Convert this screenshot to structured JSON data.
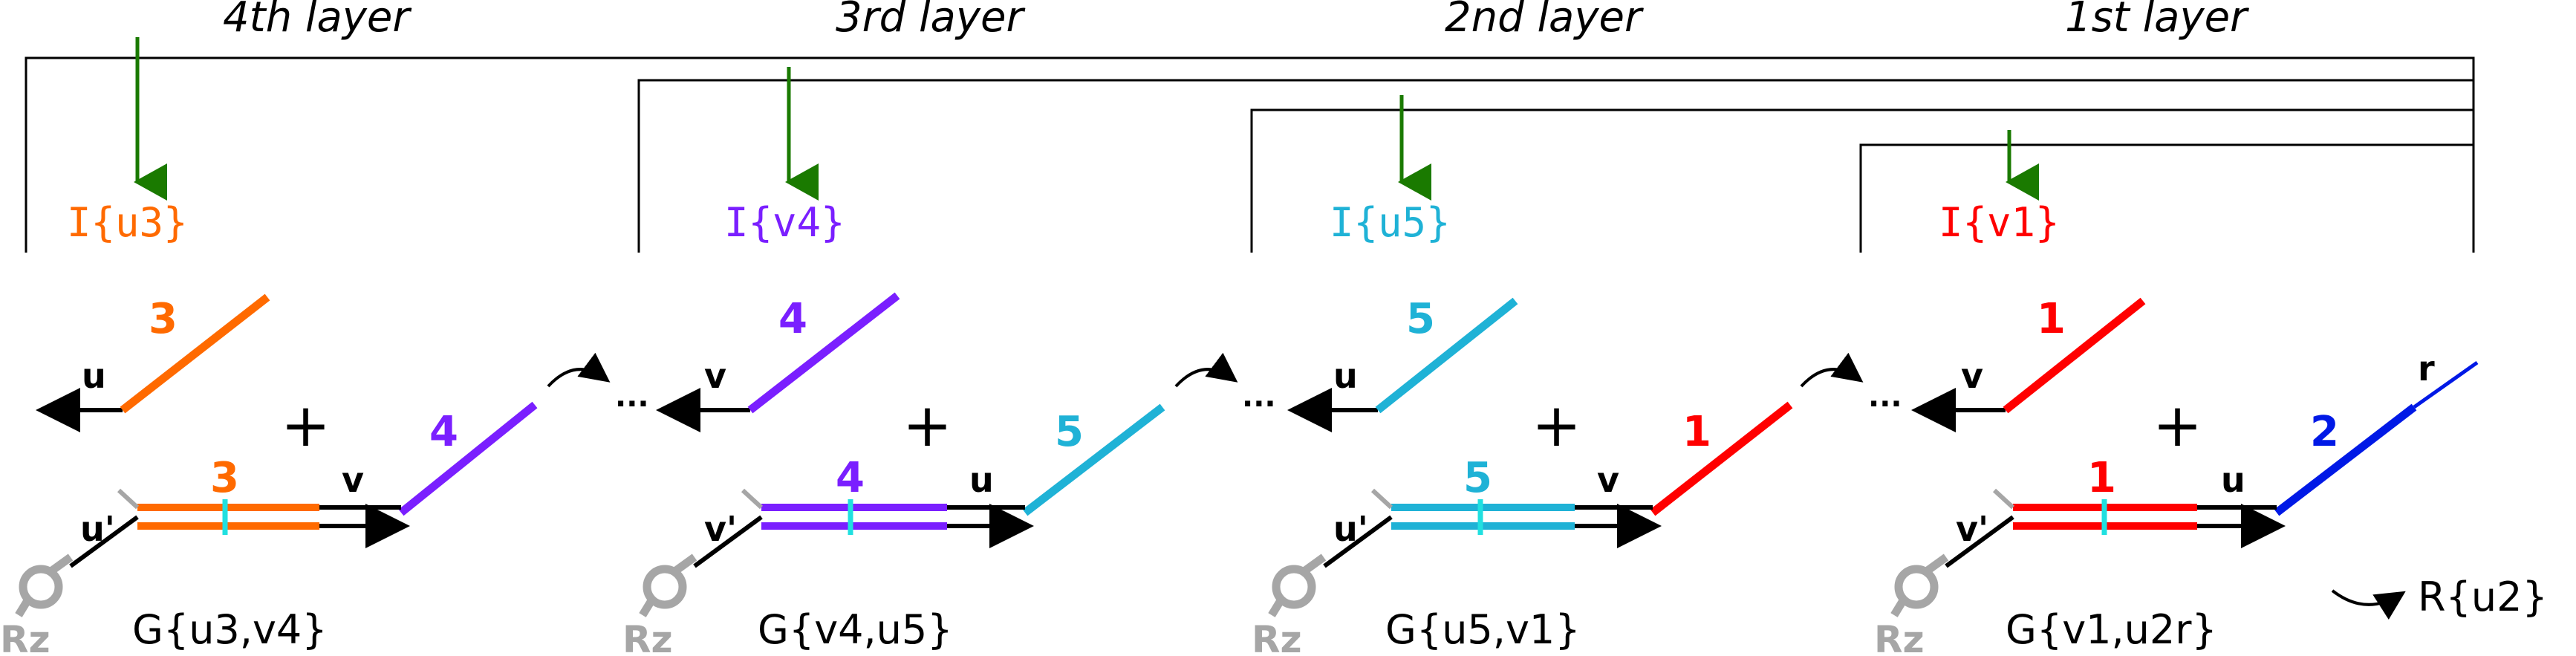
{
  "layers": [
    {
      "title": "4th layer",
      "input": "I{u3}",
      "color": "#ff6a00",
      "num": "3",
      "top_domain": "u",
      "gate_prime": "u'",
      "gate_right_domain": "v",
      "gate": "G{u3,v4}",
      "next_num": "4",
      "next_color": "#7a1fff"
    },
    {
      "title": "3rd layer",
      "input": "I{v4}",
      "color": "#7a1fff",
      "num": "4",
      "top_domain": "v",
      "gate_prime": "v'",
      "gate_right_domain": "u",
      "gate": "G{v4,u5}",
      "next_num": "5",
      "next_color": "#1fb2d6"
    },
    {
      "title": "2nd layer",
      "input": "I{u5}",
      "color": "#1fb2d6",
      "num": "5",
      "top_domain": "u",
      "gate_prime": "u'",
      "gate_right_domain": "v",
      "gate": "G{u5,v1}",
      "next_num": "1",
      "next_color": "#ff0000"
    },
    {
      "title": "1st layer",
      "input": "I{v1}",
      "color": "#ff0000",
      "num": "1",
      "top_domain": "v",
      "gate_prime": "v'",
      "gate_right_domain": "u",
      "gate": "G{v1,u2r}",
      "next_num": "2",
      "next_color": "#0019e6"
    }
  ],
  "output": {
    "label": "R{u2}",
    "toehold": "r"
  },
  "rz_label": "Rz",
  "plus_sign": "+",
  "ellipsis": "···",
  "colors": {
    "arrow_green": "#1a7a00",
    "bar_cyan": "#20e0e0",
    "rz_gray": "#a6a6a6"
  }
}
